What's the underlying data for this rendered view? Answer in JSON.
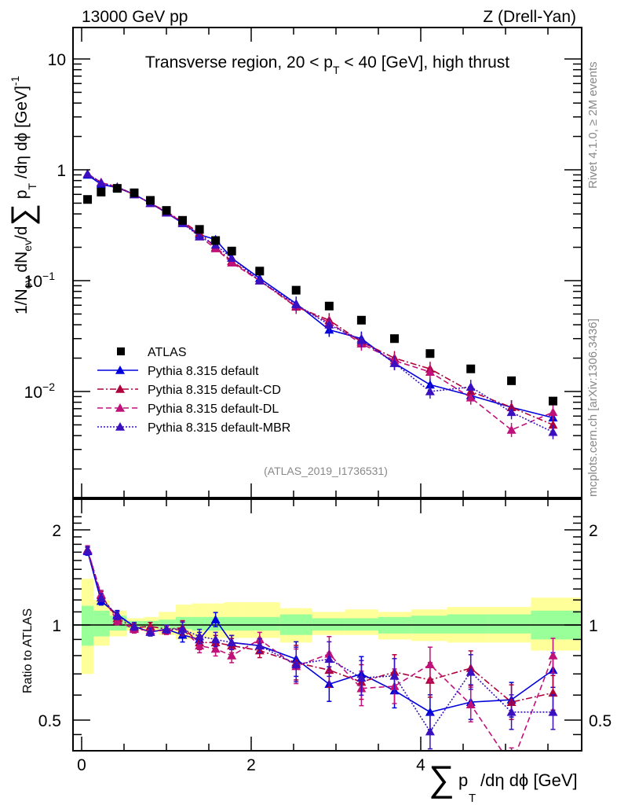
{
  "header": {
    "left": "13000 GeV pp",
    "right": "Z (Drell-Yan)"
  },
  "side_text": {
    "rivet": "Rivet 4.1.0, ≥ 2M events",
    "mcplots": "mcplots.cern.ch [arXiv:1306.3436]"
  },
  "chart_data": [
    {
      "type": "scatter",
      "panel": "main",
      "title": "Transverse region, 20 < p_T^Z < 40 [GeV], high thrust",
      "ylabel": "1/N_ev dN_ev/d∑ p_T /dη dφ  [GeV]^-1",
      "xlabel": "∑ p_T /dη dφ [GeV]",
      "yscale": "log",
      "ylim": [
        0.0017,
        18
      ],
      "xlim": [
        -0.06,
        5.95
      ],
      "y_tick_labels": [
        "10",
        "1",
        "10^-1",
        "10^-2"
      ],
      "y_ticks": [
        10,
        1,
        0.1,
        0.01
      ],
      "watermark": "(ATLAS_2019_I1736531)",
      "legend_position": "middle-left",
      "legend": [
        {
          "name": "ATLAS",
          "marker": "square",
          "color": "#000000",
          "line": "none"
        },
        {
          "name": "Pythia 8.315 default",
          "marker": "triangle",
          "color": "#0000dd",
          "line": "solid"
        },
        {
          "name": "Pythia 8.315 default-CD",
          "marker": "triangle",
          "color": "#b0003a",
          "line": "dashdot"
        },
        {
          "name": "Pythia 8.315 default-DL",
          "marker": "triangle",
          "color": "#c0107a",
          "line": "dashed"
        },
        {
          "name": "Pythia 8.315 default-MBR",
          "marker": "triangle",
          "color": "#3a10c0",
          "line": "dotted"
        }
      ],
      "x": [
        0.07,
        0.23,
        0.42,
        0.62,
        0.81,
        1.0,
        1.19,
        1.39,
        1.58,
        1.77,
        2.1,
        2.53,
        2.92,
        3.3,
        3.69,
        4.11,
        4.59,
        5.07,
        5.56
      ],
      "series": [
        {
          "name": "ATLAS",
          "values": [
            0.54,
            0.63,
            0.68,
            0.62,
            0.53,
            0.43,
            0.35,
            0.29,
            0.23,
            0.185,
            0.122,
            0.082,
            0.059,
            0.044,
            0.03,
            0.022,
            0.016,
            0.0125,
            0.0082
          ]
        },
        {
          "name": "Pythia 8.315 default",
          "values": [
            0.9,
            0.74,
            0.69,
            0.6,
            0.5,
            0.41,
            0.33,
            0.26,
            0.235,
            0.16,
            0.105,
            0.062,
            0.036,
            0.03,
            0.018,
            0.0115,
            0.0092,
            0.0072,
            0.0058
          ]
        },
        {
          "name": "Pythia 8.315 default-CD",
          "values": [
            0.92,
            0.77,
            0.7,
            0.6,
            0.5,
            0.42,
            0.34,
            0.27,
            0.2,
            0.15,
            0.1,
            0.058,
            0.044,
            0.028,
            0.02,
            0.016,
            0.01,
            0.0072,
            0.005
          ]
        },
        {
          "name": "Pythia 8.315 default-DL",
          "values": [
            0.92,
            0.77,
            0.69,
            0.6,
            0.5,
            0.41,
            0.34,
            0.25,
            0.195,
            0.145,
            0.1,
            0.059,
            0.042,
            0.027,
            0.019,
            0.015,
            0.0088,
            0.0045,
            0.0065
          ]
        },
        {
          "name": "Pythia 8.315 default-MBR",
          "values": [
            0.92,
            0.76,
            0.7,
            0.6,
            0.5,
            0.41,
            0.33,
            0.25,
            0.21,
            0.16,
            0.1,
            0.061,
            0.04,
            0.029,
            0.018,
            0.01,
            0.011,
            0.0065,
            0.0043
          ]
        }
      ]
    },
    {
      "type": "scatter",
      "panel": "ratio",
      "ylabel": "Ratio to ATLAS",
      "xlabel": "∑ p_T /dη dφ [GeV]",
      "yscale": "log",
      "ylim": [
        0.42,
        2.35
      ],
      "xlim": [
        -0.06,
        5.95
      ],
      "y_tick_labels": [
        "2",
        "1",
        "0.5"
      ],
      "y_ticks": [
        2,
        1,
        0.5
      ],
      "x_tick_labels": [
        "0",
        "2",
        "4"
      ],
      "x_ticks": [
        0,
        2,
        4
      ],
      "reference_line": 1,
      "bin_edges": [
        0.0,
        0.14,
        0.33,
        0.53,
        0.73,
        0.91,
        1.11,
        1.3,
        1.49,
        1.68,
        1.87,
        2.34,
        2.72,
        3.11,
        3.5,
        3.89,
        4.31,
        4.8,
        5.3,
        5.95
      ],
      "band_inner": {
        "color": "#99ff99",
        "lo": [
          0.86,
          0.92,
          0.96,
          0.98,
          0.98,
          0.97,
          0.97,
          0.96,
          0.96,
          0.96,
          0.96,
          0.93,
          0.96,
          0.96,
          0.94,
          0.94,
          0.94,
          0.94,
          0.9
        ],
        "hi": [
          1.15,
          1.11,
          1.07,
          1.03,
          1.03,
          1.04,
          1.06,
          1.06,
          1.06,
          1.06,
          1.06,
          1.08,
          1.05,
          1.05,
          1.06,
          1.07,
          1.08,
          1.08,
          1.11
        ]
      },
      "band_outer": {
        "color": "#ffff99",
        "lo": [
          0.7,
          0.86,
          0.92,
          0.96,
          0.95,
          0.93,
          0.9,
          0.91,
          0.91,
          0.91,
          0.91,
          0.88,
          0.93,
          0.93,
          0.9,
          0.89,
          0.88,
          0.88,
          0.83
        ],
        "hi": [
          1.4,
          1.2,
          1.11,
          1.05,
          1.06,
          1.1,
          1.16,
          1.17,
          1.17,
          1.18,
          1.18,
          1.13,
          1.1,
          1.12,
          1.1,
          1.12,
          1.14,
          1.14,
          1.22
        ]
      },
      "x": [
        0.07,
        0.23,
        0.42,
        0.62,
        0.81,
        1.0,
        1.19,
        1.39,
        1.58,
        1.77,
        2.1,
        2.53,
        2.92,
        3.3,
        3.69,
        4.11,
        4.59,
        5.07,
        5.56
      ],
      "series": [
        {
          "name": "Pythia 8.315 default",
          "values": [
            1.71,
            1.19,
            1.08,
            0.99,
            0.95,
            0.97,
            0.93,
            0.9,
            1.04,
            0.88,
            0.86,
            0.78,
            0.65,
            0.7,
            0.62,
            0.53,
            0.57,
            0.58,
            0.72
          ]
        },
        {
          "name": "Pythia 8.315 default-CD",
          "values": [
            1.73,
            1.24,
            1.05,
            0.98,
            0.99,
            0.97,
            0.98,
            0.88,
            0.88,
            0.86,
            0.83,
            0.76,
            0.72,
            0.66,
            0.71,
            0.67,
            0.73,
            0.57,
            0.61
          ]
        },
        {
          "name": "Pythia 8.315 default-DL",
          "values": [
            1.73,
            1.25,
            1.03,
            0.97,
            0.96,
            0.96,
            0.97,
            0.86,
            0.84,
            0.8,
            0.9,
            0.74,
            0.81,
            0.63,
            0.64,
            0.75,
            0.56,
            0.36,
            0.8
          ]
        },
        {
          "name": "Pythia 8.315 default-MBR",
          "values": [
            1.72,
            1.22,
            1.07,
            0.99,
            0.95,
            0.97,
            0.97,
            0.92,
            0.9,
            0.88,
            0.86,
            0.75,
            0.78,
            0.68,
            0.69,
            0.46,
            0.71,
            0.53,
            0.53
          ]
        }
      ]
    }
  ]
}
